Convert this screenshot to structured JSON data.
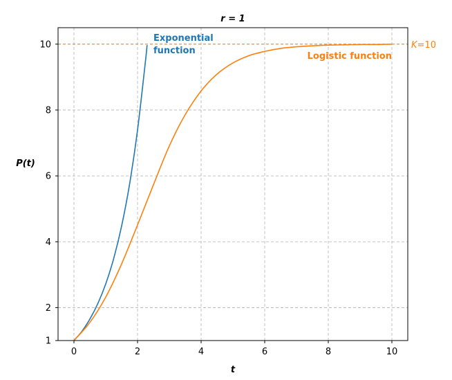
{
  "chart_data": {
    "type": "line",
    "title": "r = 1",
    "xlabel": "t",
    "ylabel": "P(t)",
    "xlim": [
      -0.5,
      10.5
    ],
    "ylim": [
      1,
      10.5
    ],
    "xticks": [
      0,
      2,
      4,
      6,
      8,
      10
    ],
    "yticks": [
      1,
      2,
      4,
      6,
      8,
      10
    ],
    "grid": true,
    "series": [
      {
        "name": "Exponential function",
        "color": "#1f77b4",
        "x": [
          0,
          0.25,
          0.5,
          0.75,
          1.0,
          1.25,
          1.5,
          1.75,
          2.0,
          2.25,
          2.3
        ],
        "y": [
          1,
          1.28,
          1.65,
          2.12,
          2.72,
          3.49,
          4.48,
          5.75,
          7.39,
          9.49,
          9.97
        ]
      },
      {
        "name": "Logistic function",
        "color": "#ff7f0e",
        "x": [
          0,
          0.5,
          1,
          1.5,
          2,
          2.5,
          3,
          3.5,
          4,
          4.5,
          5,
          5.5,
          6,
          6.5,
          7,
          7.5,
          8,
          8.5,
          9,
          9.5,
          10
        ],
        "y": [
          1,
          1.55,
          2.32,
          3.33,
          4.51,
          5.73,
          6.91,
          7.86,
          8.58,
          9.09,
          9.43,
          9.65,
          9.78,
          9.87,
          9.92,
          9.95,
          9.97,
          9.98,
          9.99,
          9.99,
          10.0
        ]
      }
    ],
    "reference_line": {
      "y": 10,
      "label_k": "K",
      "label_value": "=10",
      "color": "#ff7f0e"
    },
    "annotations": [
      {
        "lines": [
          "Exponential",
          "function"
        ],
        "color": "#1f77b4"
      },
      {
        "lines": [
          "Logistic function"
        ],
        "color": "#ff7f0e"
      }
    ]
  }
}
